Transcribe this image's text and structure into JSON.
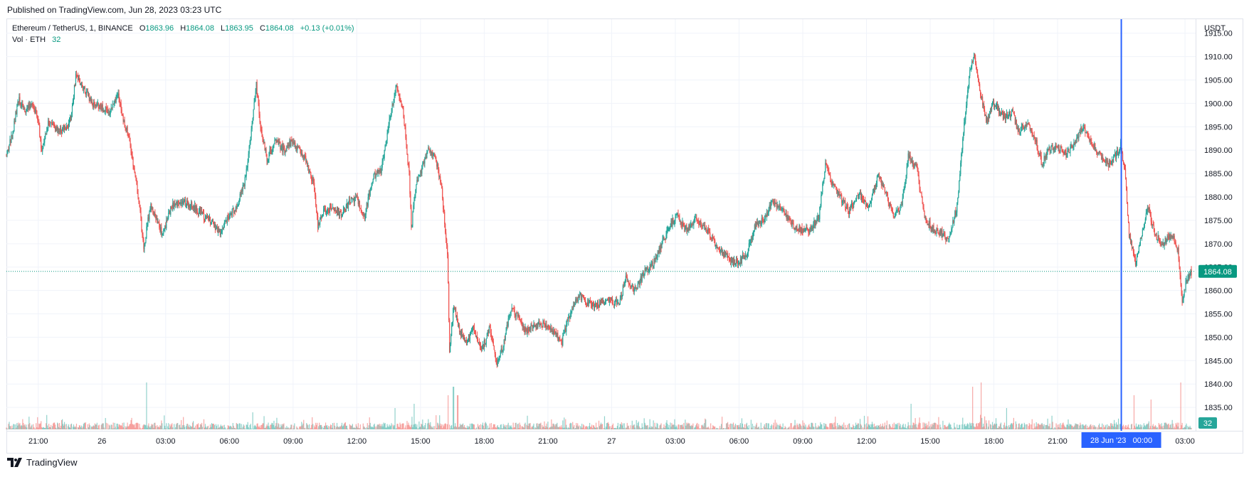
{
  "header": {
    "published": "Published on TradingView.com, Jun 28, 2023 03:23 UTC"
  },
  "legend": {
    "symbol": "Ethereum / TetherUS, 1, BINANCE",
    "o_label": "O",
    "o_value": "1863.96",
    "h_label": "H",
    "h_value": "1864.08",
    "l_label": "L",
    "l_value": "1863.95",
    "c_label": "C",
    "c_value": "1864.08",
    "change": "+0.13 (+0.01%)",
    "vol_label": "Vol · ETH",
    "vol_value": "32"
  },
  "footer": {
    "brand": "TradingView"
  },
  "colors": {
    "up": "#26a69a",
    "down": "#ef5350",
    "crosshair": "#2962ff",
    "grid": "#f0f3fa",
    "text": "#131722",
    "price_label_bg": "#089981"
  },
  "chart_data": {
    "type": "candlestick",
    "title": "Ethereum / TetherUS, 1, BINANCE",
    "interval": "1",
    "currency": "USDT",
    "ylim": [
      1830,
      1918
    ],
    "y_ticks": [
      "1835.00",
      "1840.00",
      "1845.00",
      "1850.00",
      "1855.00",
      "1860.00",
      "1865.00",
      "1870.00",
      "1875.00",
      "1880.00",
      "1885.00",
      "1890.00",
      "1895.00",
      "1900.00",
      "1905.00",
      "1910.00",
      "1915.00"
    ],
    "x_ticks": [
      "21:00",
      "26",
      "03:00",
      "06:00",
      "09:00",
      "12:00",
      "15:00",
      "18:00",
      "21:00",
      "27",
      "03:00",
      "06:00",
      "09:00",
      "12:00",
      "15:00",
      "18:00",
      "21:00",
      "03:00"
    ],
    "x_tick_hours": [
      -3,
      0,
      3,
      6,
      9,
      12,
      15,
      18,
      21,
      24,
      27,
      30,
      33,
      36,
      39,
      42,
      45,
      51
    ],
    "x_range_hours": [
      -4.5,
      51.5
    ],
    "last_price": "1864.08",
    "last_volume": "32",
    "crosshair_label": "28 Jun '23   00:00",
    "crosshair_hour": 48,
    "price_path": [
      [
        -4.5,
        1889
      ],
      [
        -4.2,
        1893
      ],
      [
        -3.9,
        1901
      ],
      [
        -3.6,
        1898
      ],
      [
        -3.3,
        1900
      ],
      [
        -3.0,
        1897
      ],
      [
        -2.8,
        1890
      ],
      [
        -2.5,
        1896
      ],
      [
        -2.0,
        1894
      ],
      [
        -1.6,
        1895
      ],
      [
        -1.4,
        1898
      ],
      [
        -1.2,
        1906
      ],
      [
        -0.8,
        1903
      ],
      [
        -0.4,
        1900
      ],
      [
        0,
        1899
      ],
      [
        0.4,
        1898
      ],
      [
        0.8,
        1902
      ],
      [
        1.0,
        1897
      ],
      [
        1.3,
        1893
      ],
      [
        1.6,
        1884
      ],
      [
        1.8,
        1878
      ],
      [
        2.0,
        1869
      ],
      [
        2.3,
        1878
      ],
      [
        2.6,
        1875
      ],
      [
        2.9,
        1872
      ],
      [
        3.3,
        1878
      ],
      [
        3.8,
        1879
      ],
      [
        4.3,
        1878
      ],
      [
        4.8,
        1876
      ],
      [
        5.2,
        1875
      ],
      [
        5.6,
        1872
      ],
      [
        6.0,
        1876
      ],
      [
        6.4,
        1878
      ],
      [
        6.8,
        1884
      ],
      [
        7.1,
        1896
      ],
      [
        7.3,
        1904
      ],
      [
        7.5,
        1895
      ],
      [
        7.8,
        1888
      ],
      [
        8.2,
        1892
      ],
      [
        8.6,
        1890
      ],
      [
        9.0,
        1892
      ],
      [
        9.3,
        1890
      ],
      [
        9.6,
        1888
      ],
      [
        10.0,
        1883
      ],
      [
        10.2,
        1874
      ],
      [
        10.5,
        1877
      ],
      [
        10.9,
        1878
      ],
      [
        11.3,
        1876
      ],
      [
        11.7,
        1879
      ],
      [
        12.0,
        1880
      ],
      [
        12.4,
        1876
      ],
      [
        12.8,
        1884
      ],
      [
        13.2,
        1886
      ],
      [
        13.6,
        1897
      ],
      [
        13.9,
        1904
      ],
      [
        14.2,
        1899
      ],
      [
        14.5,
        1885
      ],
      [
        14.6,
        1873
      ],
      [
        14.8,
        1882
      ],
      [
        15.1,
        1886
      ],
      [
        15.4,
        1890
      ],
      [
        15.7,
        1889
      ],
      [
        16.0,
        1883
      ],
      [
        16.3,
        1868
      ],
      [
        16.4,
        1847
      ],
      [
        16.6,
        1857
      ],
      [
        16.9,
        1851
      ],
      [
        17.2,
        1849
      ],
      [
        17.5,
        1852
      ],
      [
        17.9,
        1847
      ],
      [
        18.3,
        1852
      ],
      [
        18.6,
        1844
      ],
      [
        18.9,
        1848
      ],
      [
        19.3,
        1856
      ],
      [
        19.7,
        1854
      ],
      [
        20.0,
        1851
      ],
      [
        20.5,
        1853
      ],
      [
        21.0,
        1852
      ],
      [
        21.3,
        1851
      ],
      [
        21.7,
        1849
      ],
      [
        22.0,
        1854
      ],
      [
        22.5,
        1859
      ],
      [
        23.0,
        1857
      ],
      [
        23.5,
        1857
      ],
      [
        24.0,
        1858
      ],
      [
        24.4,
        1857
      ],
      [
        24.7,
        1863
      ],
      [
        25.1,
        1860
      ],
      [
        25.6,
        1864
      ],
      [
        26.0,
        1866
      ],
      [
        26.4,
        1870
      ],
      [
        26.8,
        1874
      ],
      [
        27.1,
        1876
      ],
      [
        27.5,
        1873
      ],
      [
        28.0,
        1875
      ],
      [
        28.4,
        1874
      ],
      [
        28.9,
        1870
      ],
      [
        29.3,
        1868
      ],
      [
        29.7,
        1866
      ],
      [
        30.0,
        1866
      ],
      [
        30.4,
        1868
      ],
      [
        30.8,
        1874
      ],
      [
        31.2,
        1875
      ],
      [
        31.6,
        1879
      ],
      [
        32.0,
        1878
      ],
      [
        32.5,
        1874
      ],
      [
        33.0,
        1873
      ],
      [
        33.4,
        1873
      ],
      [
        33.8,
        1876
      ],
      [
        34.1,
        1887
      ],
      [
        34.4,
        1883
      ],
      [
        34.8,
        1880
      ],
      [
        35.2,
        1877
      ],
      [
        35.7,
        1881
      ],
      [
        36.1,
        1877
      ],
      [
        36.6,
        1885
      ],
      [
        37.0,
        1880
      ],
      [
        37.3,
        1876
      ],
      [
        37.7,
        1878
      ],
      [
        38.0,
        1889
      ],
      [
        38.4,
        1886
      ],
      [
        38.8,
        1875
      ],
      [
        39.2,
        1873
      ],
      [
        39.6,
        1872
      ],
      [
        39.9,
        1871
      ],
      [
        40.3,
        1878
      ],
      [
        40.6,
        1894
      ],
      [
        40.9,
        1907
      ],
      [
        41.1,
        1911
      ],
      [
        41.4,
        1902
      ],
      [
        41.7,
        1896
      ],
      [
        42.0,
        1900
      ],
      [
        42.5,
        1897
      ],
      [
        42.9,
        1898
      ],
      [
        43.2,
        1894
      ],
      [
        43.6,
        1896
      ],
      [
        44.0,
        1892
      ],
      [
        44.3,
        1887
      ],
      [
        44.6,
        1890
      ],
      [
        45.0,
        1891
      ],
      [
        45.4,
        1889
      ],
      [
        45.8,
        1891
      ],
      [
        46.2,
        1895
      ],
      [
        46.6,
        1892
      ],
      [
        47.0,
        1889
      ],
      [
        47.4,
        1887
      ],
      [
        47.8,
        1889
      ],
      [
        48.0,
        1891
      ],
      [
        48.2,
        1886
      ],
      [
        48.4,
        1872
      ],
      [
        48.7,
        1866
      ],
      [
        49.0,
        1872
      ],
      [
        49.3,
        1878
      ],
      [
        49.6,
        1872
      ],
      [
        50.0,
        1870
      ],
      [
        50.4,
        1872
      ],
      [
        50.7,
        1869
      ],
      [
        50.9,
        1858
      ],
      [
        51.1,
        1862
      ],
      [
        51.3,
        1864
      ]
    ],
    "volume_spikes": [
      [
        2.1,
        11
      ],
      [
        7.1,
        4
      ],
      [
        13.8,
        5
      ],
      [
        14.7,
        6
      ],
      [
        16.3,
        8
      ],
      [
        16.55,
        10
      ],
      [
        16.75,
        8
      ],
      [
        38.1,
        6
      ],
      [
        41.0,
        10
      ],
      [
        41.4,
        11
      ],
      [
        42.6,
        5
      ],
      [
        48.6,
        8
      ],
      [
        49.4,
        7
      ],
      [
        50.8,
        11
      ]
    ]
  }
}
